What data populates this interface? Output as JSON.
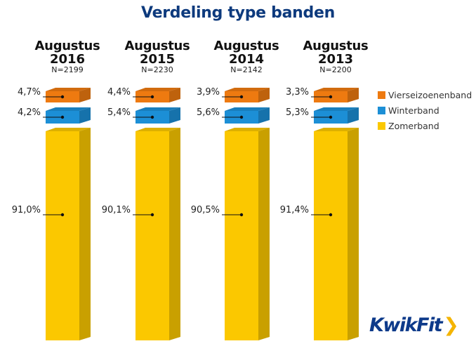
{
  "chart_data": {
    "type": "bar",
    "stacked": true,
    "title": "Verdeling type banden",
    "unit": "%",
    "categories": [
      {
        "month": "Augustus",
        "year": "2016",
        "n": "N=2199"
      },
      {
        "month": "Augustus",
        "year": "2015",
        "n": "N=2230"
      },
      {
        "month": "Augustus",
        "year": "2014",
        "n": "N=2142"
      },
      {
        "month": "Augustus",
        "year": "2013",
        "n": "N=2200"
      }
    ],
    "series": [
      {
        "name": "Vierseizoenenband",
        "color": "#ee7a10",
        "values": [
          4.7,
          4.4,
          3.9,
          3.3
        ],
        "labels": [
          "4,7%",
          "4,4%",
          "3,9%",
          "3,3%"
        ]
      },
      {
        "name": "Winterband",
        "color": "#1c8fd6",
        "values": [
          4.2,
          5.4,
          5.6,
          5.3
        ],
        "labels": [
          "4,2%",
          "5,4%",
          "5,6%",
          "5,3%"
        ]
      },
      {
        "name": "Zomerband",
        "color": "#fbc800",
        "values": [
          91.0,
          90.1,
          90.5,
          91.4
        ],
        "labels": [
          "91,0%",
          "90,1%",
          "90,5%",
          "91,4%"
        ]
      }
    ],
    "legend_position": "right",
    "grid": false
  },
  "brand": {
    "logo_text": "KwikFit",
    "logo_chevron": "❯",
    "title_color": "#0d3a7d"
  }
}
